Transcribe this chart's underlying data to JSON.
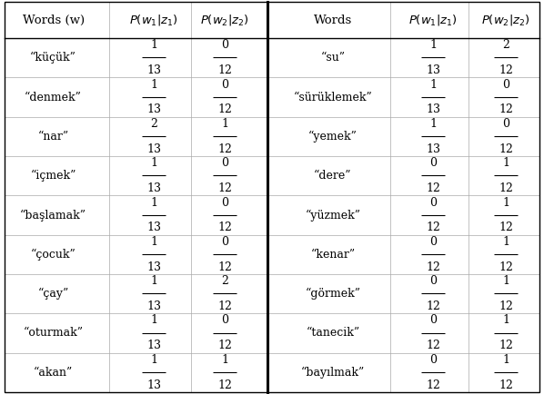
{
  "left_words": [
    "“küçük”",
    "“denmek”",
    "“nar”",
    "“içmek”",
    "“başlamak”",
    "“çocuk”",
    "“çay”",
    "“oturmak”",
    "“akan”"
  ],
  "left_p1_num": [
    "1",
    "1",
    "2",
    "1",
    "1",
    "1",
    "1",
    "1",
    "1"
  ],
  "left_p1_den": [
    "13",
    "13",
    "13",
    "13",
    "13",
    "13",
    "13",
    "13",
    "13"
  ],
  "left_p2_num": [
    "0",
    "0",
    "1",
    "0",
    "0",
    "0",
    "2",
    "0",
    "1"
  ],
  "left_p2_den": [
    "12",
    "12",
    "12",
    "12",
    "12",
    "12",
    "12",
    "12",
    "12"
  ],
  "right_words": [
    "“su”",
    "“sürüklemek”",
    "“yemek”",
    "“dere”",
    "“yüzmek”",
    "“kenar”",
    "“görmek”",
    "“tanecik”",
    "“bayılmak”"
  ],
  "right_p1_num": [
    "1",
    "1",
    "1",
    "0",
    "0",
    "0",
    "0",
    "0",
    "0"
  ],
  "right_p1_den": [
    "13",
    "13",
    "13",
    "12",
    "12",
    "12",
    "12",
    "12",
    "12"
  ],
  "right_p2_num": [
    "2",
    "0",
    "0",
    "1",
    "1",
    "1",
    "1",
    "1",
    "1"
  ],
  "right_p2_den": [
    "12",
    "12",
    "12",
    "12",
    "12",
    "12",
    "12",
    "12",
    "12"
  ],
  "header_left_col0": "Words (w)",
  "header_right_col0": "Words",
  "bg_color": "#ffffff",
  "text_color": "#000000",
  "grid_color_light": "#aaaaaa",
  "grid_color_dark": "#000000",
  "font_size": 9.0,
  "header_font_size": 9.5,
  "fig_width": 5.98,
  "fig_height": 4.34,
  "dpi": 100
}
